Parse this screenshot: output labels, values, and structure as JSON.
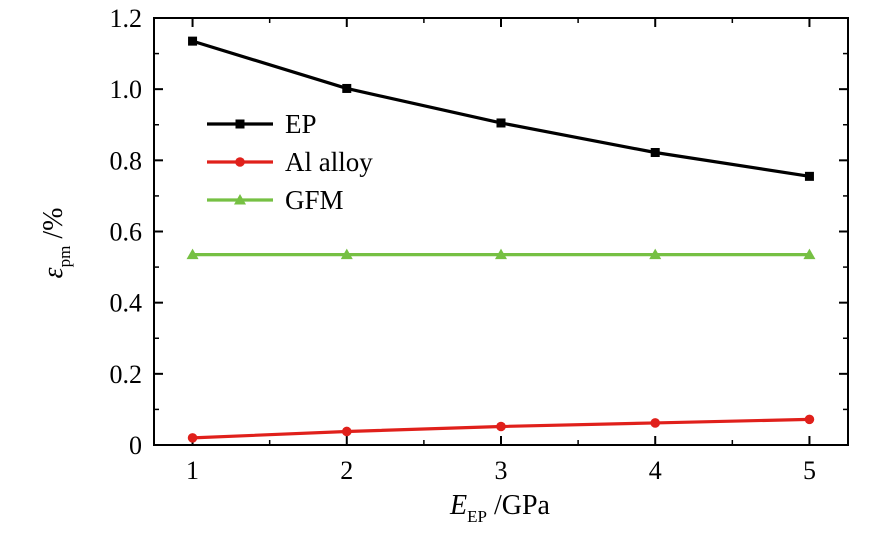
{
  "chart_data": {
    "type": "line",
    "x": [
      1,
      2,
      3,
      4,
      5
    ],
    "xlim": [
      0.75,
      5.25
    ],
    "ylim": [
      0,
      1.2
    ],
    "xticks": [
      1,
      2,
      3,
      4,
      5
    ],
    "xtick_labels": [
      "1",
      "2",
      "3",
      "4",
      "5"
    ],
    "yticks": [
      0,
      0.2,
      0.4,
      0.6,
      0.8,
      1.0,
      1.2
    ],
    "ytick_labels": [
      "0",
      "0.2",
      "0.4",
      "0.6",
      "0.8",
      "1.0",
      "1.2"
    ],
    "xlabel": {
      "main": "E",
      "sub": "EP",
      "rest": " /GPa"
    },
    "ylabel": {
      "main": "ε",
      "sub": "pm",
      "rest": " /%"
    },
    "grid": false,
    "legend_position": "upper-left",
    "series": [
      {
        "name": "EP",
        "color": "#000000",
        "marker": "square",
        "values": [
          1.135,
          1.002,
          0.905,
          0.822,
          0.755
        ]
      },
      {
        "name": "Al alloy",
        "color": "#e0201b",
        "marker": "circle",
        "values": [
          0.02,
          0.038,
          0.052,
          0.062,
          0.072
        ]
      },
      {
        "name": "GFM",
        "color": "#76c043",
        "marker": "triangle",
        "values": [
          0.535,
          0.535,
          0.535,
          0.535,
          0.535
        ]
      }
    ]
  }
}
